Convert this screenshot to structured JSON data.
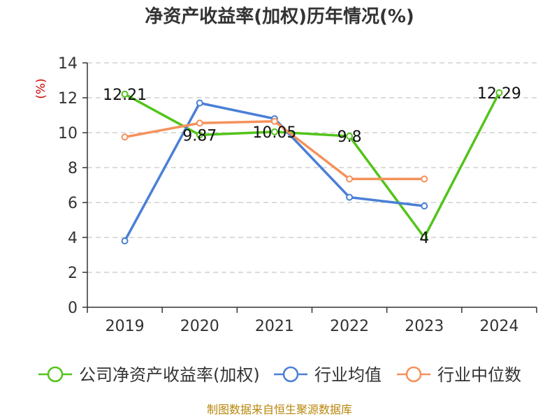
{
  "chart_data": {
    "type": "line",
    "title": "净资产收益率(加权)历年情况(%)",
    "ylabel": "(%)",
    "xlabel": "",
    "categories": [
      "2019",
      "2020",
      "2021",
      "2022",
      "2023",
      "2024"
    ],
    "ylim": [
      0,
      14
    ],
    "yticks": [
      0,
      2,
      4,
      6,
      8,
      10,
      12,
      14
    ],
    "grid": true,
    "legend_position": "bottom",
    "series": [
      {
        "name": "公司净资产收益率(加权)",
        "color": "#52c41a",
        "values": [
          12.21,
          9.87,
          10.05,
          9.8,
          4,
          12.29
        ],
        "labels": [
          "12.21",
          "9.87",
          "10.05",
          "9.8",
          "4",
          "12.29"
        ]
      },
      {
        "name": "行业均值",
        "color": "#4a7fd6",
        "values": [
          3.8,
          11.7,
          10.8,
          6.3,
          5.8,
          null
        ]
      },
      {
        "name": "行业中位数",
        "color": "#f5915a",
        "values": [
          9.75,
          10.55,
          10.65,
          7.35,
          7.35,
          null
        ]
      }
    ],
    "source": "制图数据来自恒生聚源数据库"
  }
}
